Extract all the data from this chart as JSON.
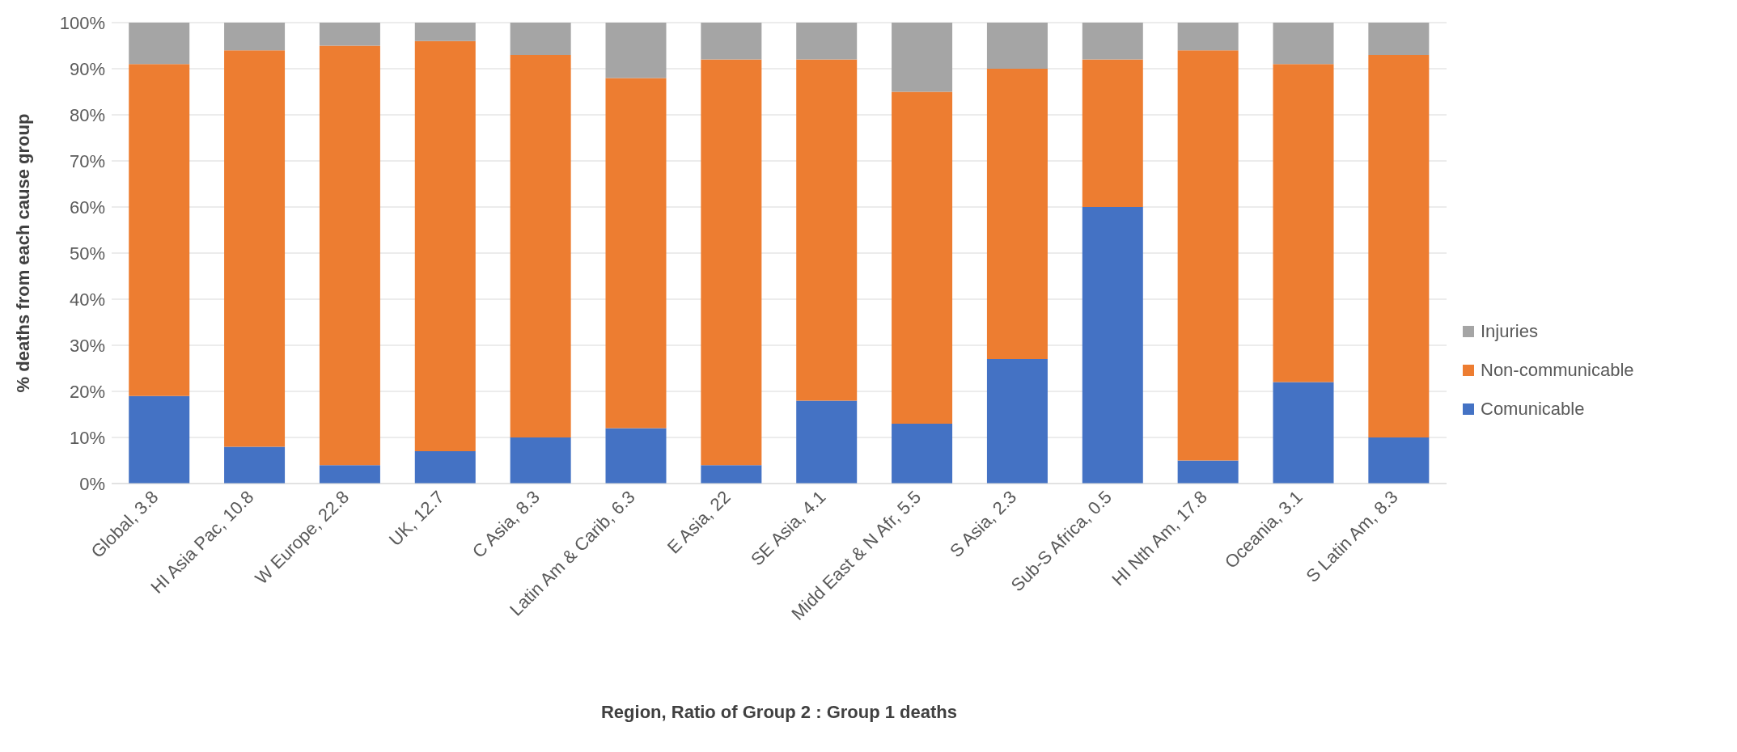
{
  "chart_data": {
    "type": "bar",
    "stacked": true,
    "xlabel": "Region,  Ratio of Group 2 : Group 1 deaths",
    "ylabel": "% deaths from each cause group",
    "categories": [
      "Global, 3.8",
      "HI Asia Pac, 10.8",
      "W Europe, 22.8",
      "UK, 12.7",
      "C Asia, 8.3",
      "Latin Am & Carib, 6.3",
      "E Asia, 22",
      "SE Asia, 4.1",
      "Midd East & N Afr, 5.5",
      "S Asia, 2.3",
      "Sub-S Africa, 0.5",
      "HI Nth Am, 17.8",
      "Oceania, 3.1",
      "S Latin Am, 8.3"
    ],
    "series": [
      {
        "name": "Comunicable",
        "color": "#4472c4",
        "values": [
          19,
          8,
          4,
          7,
          10,
          12,
          4,
          18,
          13,
          27,
          60,
          5,
          22,
          10
        ]
      },
      {
        "name": "Non-communicable",
        "color": "#ed7d31",
        "values": [
          72,
          86,
          91,
          89,
          83,
          76,
          88,
          74,
          72,
          63,
          32,
          89,
          69,
          83
        ]
      },
      {
        "name": "Injuries",
        "color": "#a5a5a5",
        "values": [
          9,
          6,
          5,
          4,
          7,
          12,
          8,
          8,
          15,
          10,
          8,
          6,
          9,
          7
        ]
      }
    ],
    "ylim": [
      0,
      100
    ],
    "yticks": [
      {
        "value": 0,
        "label": "0%"
      },
      {
        "value": 10,
        "label": "10%"
      },
      {
        "value": 20,
        "label": "20%"
      },
      {
        "value": 30,
        "label": "30%"
      },
      {
        "value": 40,
        "label": "40%"
      },
      {
        "value": 50,
        "label": "50%"
      },
      {
        "value": 60,
        "label": "60%"
      },
      {
        "value": 70,
        "label": "70%"
      },
      {
        "value": 80,
        "label": "80%"
      },
      {
        "value": 90,
        "label": "90%"
      },
      {
        "value": 100,
        "label": "100%"
      }
    ],
    "grid": "y",
    "legend": "right"
  }
}
